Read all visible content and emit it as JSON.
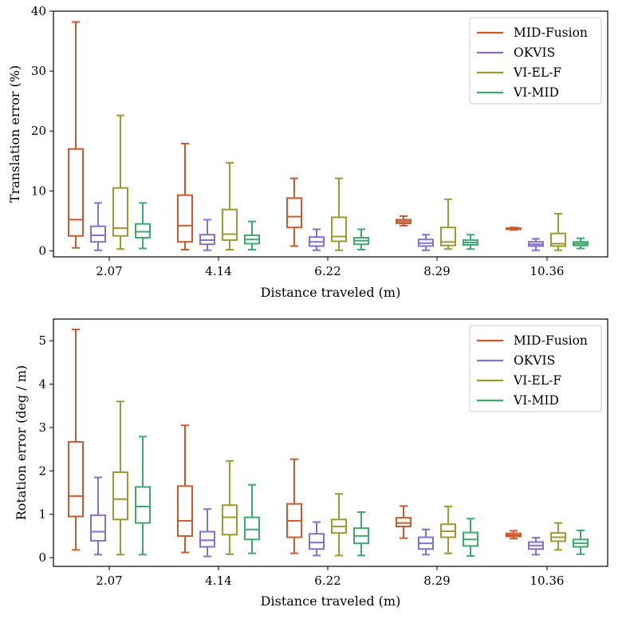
{
  "chart_data": [
    {
      "type": "box",
      "xlabel": "Distance traveled (m)",
      "ylabel": "Translation error (%)",
      "ylim": [
        -1,
        40
      ],
      "yticks": [
        0,
        10,
        20,
        30,
        40
      ],
      "categories": [
        "2.07",
        "4.14",
        "6.22",
        "8.29",
        "10.36"
      ],
      "legend_position": "top-right",
      "grid": false,
      "series": [
        {
          "name": "MID-Fusion",
          "color": "#c85a2c",
          "boxes": [
            {
              "whislo": 0.5,
              "q1": 2.5,
              "med": 5.2,
              "q3": 17.0,
              "whishi": 38.2
            },
            {
              "whislo": 0.2,
              "q1": 1.5,
              "med": 4.2,
              "q3": 9.3,
              "whishi": 17.9
            },
            {
              "whislo": 0.8,
              "q1": 3.9,
              "med": 5.7,
              "q3": 8.8,
              "whishi": 12.1
            },
            {
              "whislo": 4.2,
              "q1": 4.6,
              "med": 4.9,
              "q3": 5.2,
              "whishi": 5.8
            },
            {
              "whislo": 3.5,
              "q1": 3.6,
              "med": 3.7,
              "q3": 3.8,
              "whishi": 3.9
            }
          ]
        },
        {
          "name": "OKVIS",
          "color": "#8470cf",
          "boxes": [
            {
              "whislo": 0.1,
              "q1": 1.5,
              "med": 2.6,
              "q3": 4.1,
              "whishi": 8.0
            },
            {
              "whislo": 0.1,
              "q1": 1.1,
              "med": 1.8,
              "q3": 2.7,
              "whishi": 5.2
            },
            {
              "whislo": 0.1,
              "q1": 0.8,
              "med": 1.5,
              "q3": 2.3,
              "whishi": 3.6
            },
            {
              "whislo": 0.1,
              "q1": 0.8,
              "med": 1.3,
              "q3": 1.9,
              "whishi": 2.7
            },
            {
              "whislo": 0.1,
              "q1": 0.8,
              "med": 1.1,
              "q3": 1.5,
              "whishi": 2.0
            }
          ]
        },
        {
          "name": "VI-EL-F",
          "color": "#9c9a2e",
          "boxes": [
            {
              "whislo": 0.3,
              "q1": 2.5,
              "med": 3.8,
              "q3": 10.5,
              "whishi": 22.6
            },
            {
              "whislo": 0.2,
              "q1": 1.8,
              "med": 2.8,
              "q3": 6.9,
              "whishi": 14.7
            },
            {
              "whislo": 0.1,
              "q1": 1.6,
              "med": 2.4,
              "q3": 5.6,
              "whishi": 12.1
            },
            {
              "whislo": 0.3,
              "q1": 0.9,
              "med": 1.5,
              "q3": 3.9,
              "whishi": 8.6
            },
            {
              "whislo": 0.1,
              "q1": 0.8,
              "med": 1.2,
              "q3": 2.9,
              "whishi": 6.2
            }
          ]
        },
        {
          "name": "VI-MID",
          "color": "#3daa6e",
          "boxes": [
            {
              "whislo": 0.4,
              "q1": 2.2,
              "med": 3.2,
              "q3": 4.5,
              "whishi": 8.0
            },
            {
              "whislo": 0.2,
              "q1": 1.2,
              "med": 1.9,
              "q3": 2.6,
              "whishi": 4.9
            },
            {
              "whislo": 0.2,
              "q1": 1.1,
              "med": 1.7,
              "q3": 2.2,
              "whishi": 3.6
            },
            {
              "whislo": 0.3,
              "q1": 1.0,
              "med": 1.4,
              "q3": 1.8,
              "whishi": 2.7
            },
            {
              "whislo": 0.4,
              "q1": 0.9,
              "med": 1.2,
              "q3": 1.5,
              "whishi": 2.1
            }
          ]
        }
      ]
    },
    {
      "type": "box",
      "xlabel": "Distance traveled (m)",
      "ylabel": "Rotation error (deg / m)",
      "ylim": [
        -0.2,
        5.5
      ],
      "yticks": [
        0,
        1,
        2,
        3,
        4,
        5
      ],
      "categories": [
        "2.07",
        "4.14",
        "6.22",
        "8.29",
        "10.36"
      ],
      "legend_position": "top-right",
      "grid": false,
      "series": [
        {
          "name": "MID-Fusion",
          "color": "#c85a2c",
          "boxes": [
            {
              "whislo": 0.18,
              "q1": 0.95,
              "med": 1.42,
              "q3": 2.67,
              "whishi": 5.26
            },
            {
              "whislo": 0.12,
              "q1": 0.5,
              "med": 0.85,
              "q3": 1.65,
              "whishi": 3.05
            },
            {
              "whislo": 0.1,
              "q1": 0.47,
              "med": 0.85,
              "q3": 1.24,
              "whishi": 2.27
            },
            {
              "whislo": 0.45,
              "q1": 0.72,
              "med": 0.8,
              "q3": 0.92,
              "whishi": 1.19
            },
            {
              "whislo": 0.44,
              "q1": 0.49,
              "med": 0.52,
              "q3": 0.56,
              "whishi": 0.62
            }
          ]
        },
        {
          "name": "OKVIS",
          "color": "#8470cf",
          "boxes": [
            {
              "whislo": 0.07,
              "q1": 0.39,
              "med": 0.6,
              "q3": 0.98,
              "whishi": 1.85
            },
            {
              "whislo": 0.03,
              "q1": 0.25,
              "med": 0.4,
              "q3": 0.6,
              "whishi": 1.12
            },
            {
              "whislo": 0.05,
              "q1": 0.2,
              "med": 0.35,
              "q3": 0.55,
              "whishi": 0.82
            },
            {
              "whislo": 0.07,
              "q1": 0.2,
              "med": 0.33,
              "q3": 0.47,
              "whishi": 0.65
            },
            {
              "whislo": 0.07,
              "q1": 0.2,
              "med": 0.28,
              "q3": 0.36,
              "whishi": 0.46
            }
          ]
        },
        {
          "name": "VI-EL-F",
          "color": "#9c9a2e",
          "boxes": [
            {
              "whislo": 0.07,
              "q1": 0.88,
              "med": 1.35,
              "q3": 1.97,
              "whishi": 3.6
            },
            {
              "whislo": 0.08,
              "q1": 0.53,
              "med": 0.93,
              "q3": 1.21,
              "whishi": 2.23
            },
            {
              "whislo": 0.05,
              "q1": 0.57,
              "med": 0.72,
              "q3": 0.88,
              "whishi": 1.47
            },
            {
              "whislo": 0.1,
              "q1": 0.47,
              "med": 0.61,
              "q3": 0.77,
              "whishi": 1.18
            },
            {
              "whislo": 0.18,
              "q1": 0.38,
              "med": 0.47,
              "q3": 0.57,
              "whishi": 0.8
            }
          ]
        },
        {
          "name": "VI-MID",
          "color": "#3daa6e",
          "boxes": [
            {
              "whislo": 0.07,
              "q1": 0.8,
              "med": 1.18,
              "q3": 1.63,
              "whishi": 2.79
            },
            {
              "whislo": 0.1,
              "q1": 0.42,
              "med": 0.65,
              "q3": 0.93,
              "whishi": 1.68
            },
            {
              "whislo": 0.05,
              "q1": 0.33,
              "med": 0.5,
              "q3": 0.68,
              "whishi": 1.05
            },
            {
              "whislo": 0.04,
              "q1": 0.27,
              "med": 0.42,
              "q3": 0.58,
              "whishi": 0.9
            },
            {
              "whislo": 0.08,
              "q1": 0.25,
              "med": 0.33,
              "q3": 0.42,
              "whishi": 0.63
            }
          ]
        }
      ]
    }
  ]
}
